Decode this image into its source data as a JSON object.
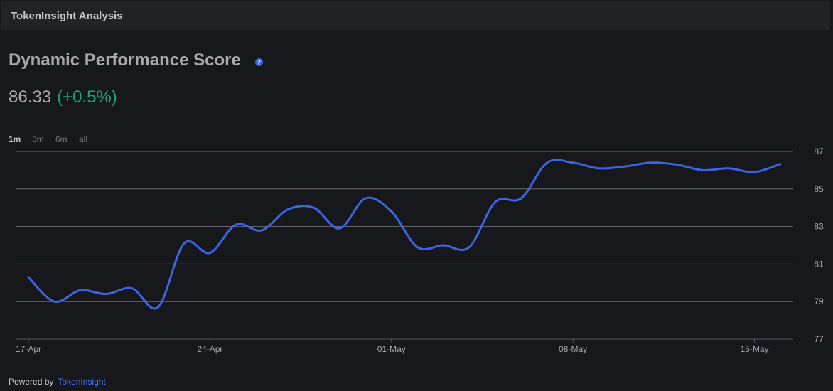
{
  "header": {
    "title": "TokenInsight Analysis"
  },
  "main": {
    "title": "Dynamic Performance Score",
    "score_value": "86.33",
    "score_change": "(+0.5%)",
    "ranges": [
      "1m",
      "3m",
      "6m",
      "all"
    ],
    "active_range": "1m"
  },
  "footer": {
    "powered_by": "Powered by",
    "brand": "TokenInsight"
  },
  "colors": {
    "line": "#3d63e6",
    "accent": "#3d63e6",
    "positive": "#1aa373",
    "grid": "#6e6f74"
  },
  "chart_data": {
    "type": "line",
    "title": "",
    "xlabel": "",
    "ylabel": "",
    "x_tick_labels": [
      "17-Apr",
      "24-Apr",
      "01-May",
      "08-May",
      "15-May"
    ],
    "y_ticks": [
      77,
      79,
      81,
      83,
      85,
      87
    ],
    "ylim": [
      77,
      87
    ],
    "y_axis_side": "right",
    "grid": true,
    "series": [
      {
        "name": "",
        "x": [
          "2024-04-17",
          "2024-04-18",
          "2024-04-19",
          "2024-04-20",
          "2024-04-21",
          "2024-04-22",
          "2024-04-23",
          "2024-04-24",
          "2024-04-25",
          "2024-04-26",
          "2024-04-27",
          "2024-04-28",
          "2024-04-29",
          "2024-04-30",
          "2024-05-01",
          "2024-05-02",
          "2024-05-03",
          "2024-05-04",
          "2024-05-05",
          "2024-05-06",
          "2024-05-07",
          "2024-05-08",
          "2024-05-09",
          "2024-05-10",
          "2024-05-11",
          "2024-05-12",
          "2024-05-13",
          "2024-05-14",
          "2024-05-15",
          "2024-05-16"
        ],
        "values": [
          80.3,
          79.0,
          79.6,
          79.4,
          79.7,
          78.7,
          82.1,
          81.6,
          83.1,
          82.8,
          83.9,
          84.0,
          82.9,
          84.5,
          83.8,
          81.9,
          82.0,
          81.9,
          84.3,
          84.5,
          86.4,
          86.4,
          86.1,
          86.2,
          86.4,
          86.3,
          86.0,
          86.1,
          85.9,
          86.33
        ]
      }
    ]
  }
}
